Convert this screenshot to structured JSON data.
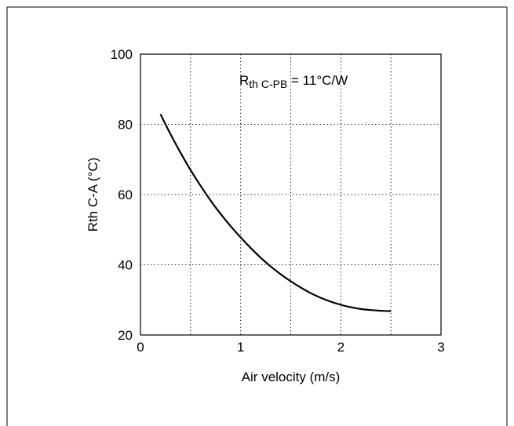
{
  "chart_data": {
    "type": "line",
    "xlabel": "Air velocity (m/s)",
    "ylabel": "Rth C-A (°C)",
    "xlim": [
      0,
      3
    ],
    "ylim": [
      20,
      100
    ],
    "x_ticks": [
      0,
      1,
      2,
      3
    ],
    "y_ticks": [
      20,
      40,
      60,
      80,
      100
    ],
    "x_tick_labels": [
      "0",
      "1",
      "2",
      "3"
    ],
    "y_tick_labels": [
      "20",
      "40",
      "60",
      "80",
      "100"
    ],
    "x_minor_grid": [
      0.5,
      1.5,
      2.5
    ],
    "grid": true,
    "grid_style": "dotted",
    "annotation": {
      "prefix": "R",
      "subscript": "th C-PB",
      "suffix": " = 11°C/W"
    },
    "series": [
      {
        "color": "#000000",
        "x": [
          0.2,
          0.3,
          0.4,
          0.5,
          0.6,
          0.7,
          0.8,
          0.9,
          1.0,
          1.1,
          1.2,
          1.3,
          1.4,
          1.5,
          1.6,
          1.7,
          1.8,
          1.9,
          2.0,
          2.1,
          2.2,
          2.3,
          2.4,
          2.5
        ],
        "y": [
          82.9,
          77.2,
          71.9,
          67.0,
          62.5,
          58.3,
          54.5,
          51.0,
          47.8,
          44.8,
          42.0,
          39.5,
          37.3,
          35.3,
          33.5,
          31.9,
          30.6,
          29.5,
          28.6,
          27.9,
          27.4,
          27.1,
          26.9,
          26.8
        ]
      }
    ]
  }
}
